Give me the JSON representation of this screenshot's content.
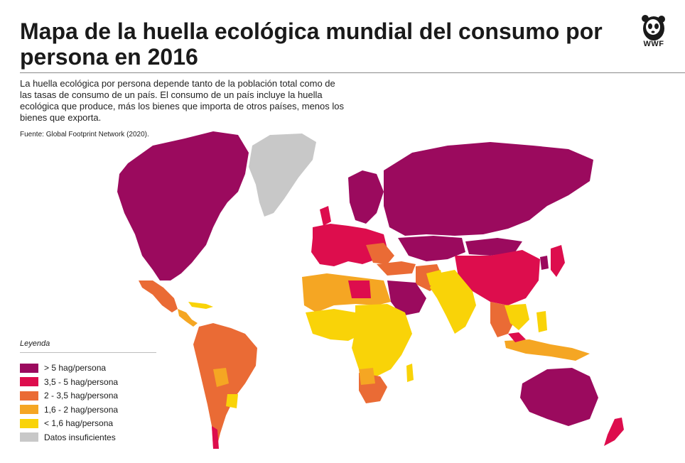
{
  "title": "Mapa de la huella ecológica mundial del consumo por persona en 2016",
  "description": "La huella ecológica por persona depende tanto de la población total como de las tasas de consumo de un país. El consumo de un país incluye la huella ecológica que produce, más los bienes que importa de otros países, menos los bienes que exporta.",
  "source": "Fuente: Global Footprint Network (2020).",
  "logo": {
    "text": "WWF",
    "icon": "panda-icon"
  },
  "legend": {
    "title": "Leyenda",
    "items": [
      {
        "label": "> 5 hag/persona",
        "color": "#9B0A5E"
      },
      {
        "label": "3,5 - 5 hag/persona",
        "color": "#DD0D4D"
      },
      {
        "label": "2 - 3,5 hag/persona",
        "color": "#EA6B35"
      },
      {
        "label": "1,6 - 2 hag/persona",
        "color": "#F5A623"
      },
      {
        "label": "< 1,6 hag/persona",
        "color": "#F9D308"
      },
      {
        "label": "Datos insuficientes",
        "color": "#C8C8C8"
      }
    ]
  }
}
